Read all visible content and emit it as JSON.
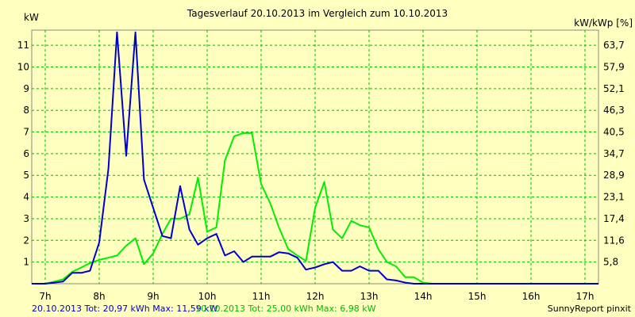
{
  "chart_data": {
    "type": "line",
    "title": "Tagesverlauf 20.10.2013 im Vergleich zum 10.10.2013",
    "ylabel_left": "kW",
    "ylabel_right": "kW/kWp [%]",
    "x_ticks": [
      "7h",
      "8h",
      "9h",
      "10h",
      "11h",
      "12h",
      "13h",
      "14h",
      "15h",
      "16h",
      "17h"
    ],
    "y_ticks_left": [
      "1",
      "2",
      "3",
      "4",
      "5",
      "6",
      "7",
      "8",
      "9",
      "10",
      "11"
    ],
    "y_ticks_right": [
      "5,8",
      "11,6",
      "17,4",
      "23,1",
      "28,9",
      "34,7",
      "40,5",
      "46,3",
      "52,1",
      "57,9",
      "63,7"
    ],
    "xlim": [
      6.75,
      17.25
    ],
    "ylim": [
      0,
      11.7
    ],
    "grid": true,
    "grid_color": "#00bb00",
    "series": [
      {
        "name": "20.10.2013",
        "color": "#0000cc",
        "x": [
          6.75,
          7.0,
          7.17,
          7.33,
          7.5,
          7.67,
          7.83,
          8.0,
          8.17,
          8.33,
          8.5,
          8.67,
          8.83,
          9.0,
          9.17,
          9.33,
          9.5,
          9.67,
          9.83,
          10.0,
          10.17,
          10.33,
          10.5,
          10.67,
          10.83,
          11.0,
          11.17,
          11.33,
          11.5,
          11.67,
          11.83,
          12.0,
          12.17,
          12.33,
          12.5,
          12.67,
          12.83,
          13.0,
          13.17,
          13.33,
          13.5,
          13.67,
          13.83,
          14.0,
          14.17,
          14.33,
          14.5,
          14.67,
          14.83,
          15.0,
          15.17,
          15.33,
          15.5,
          15.67,
          15.83,
          16.0,
          16.17,
          16.33,
          16.5,
          16.67,
          16.83,
          17.0,
          17.25
        ],
        "y": [
          0,
          0,
          0.05,
          0.1,
          0.5,
          0.5,
          0.6,
          1.9,
          5.3,
          11.6,
          5.9,
          11.6,
          4.8,
          3.5,
          2.2,
          2.1,
          4.5,
          2.5,
          1.8,
          2.1,
          2.3,
          1.3,
          1.5,
          1.0,
          1.25,
          1.25,
          1.25,
          1.45,
          1.4,
          1.2,
          0.65,
          0.75,
          0.9,
          1.0,
          0.6,
          0.6,
          0.8,
          0.6,
          0.6,
          0.2,
          0.15,
          0.05,
          0,
          0,
          0,
          0,
          0,
          0,
          0,
          0,
          0,
          0,
          0,
          0,
          0,
          0,
          0,
          0,
          0,
          0,
          0,
          0,
          0
        ]
      },
      {
        "name": "10.10.2013",
        "color": "#00ee00",
        "x": [
          6.75,
          7.0,
          7.17,
          7.33,
          7.5,
          7.67,
          7.83,
          8.0,
          8.17,
          8.33,
          8.5,
          8.67,
          8.83,
          9.0,
          9.17,
          9.33,
          9.5,
          9.67,
          9.83,
          10.0,
          10.17,
          10.33,
          10.5,
          10.67,
          10.83,
          11.0,
          11.17,
          11.33,
          11.5,
          11.67,
          11.83,
          12.0,
          12.17,
          12.33,
          12.5,
          12.67,
          12.83,
          13.0,
          13.17,
          13.33,
          13.5,
          13.67,
          13.83,
          14.0,
          14.17,
          14.33,
          14.5,
          14.67,
          14.83,
          15.0,
          15.17,
          15.33,
          15.5,
          15.67,
          15.83,
          16.0,
          16.17,
          16.33,
          16.5,
          16.67,
          16.83,
          17.0,
          17.25
        ],
        "y": [
          0,
          0,
          0.1,
          0.2,
          0.55,
          0.75,
          0.95,
          1.1,
          1.2,
          1.3,
          1.75,
          2.1,
          0.9,
          1.4,
          2.3,
          3.0,
          3.0,
          3.2,
          4.9,
          2.4,
          2.6,
          5.7,
          6.8,
          6.95,
          6.95,
          4.6,
          3.7,
          2.6,
          1.6,
          1.3,
          1.05,
          3.5,
          4.7,
          2.5,
          2.1,
          2.9,
          2.7,
          2.6,
          1.6,
          1.0,
          0.8,
          0.3,
          0.3,
          0.05,
          0,
          0,
          0,
          0,
          0,
          0,
          0,
          0,
          0,
          0,
          0,
          0,
          0,
          0,
          0,
          0,
          0,
          0,
          0
        ]
      }
    ],
    "legend": [
      {
        "text": "20.10.2013 Tot: 20,97 kWh Max: 11,59 kW",
        "color": "#0000cc"
      },
      {
        "text": "10.10.2013 Tot: 25,00 kWh Max: 6,98 kW",
        "color": "#00bb00"
      }
    ],
    "credit": "SunnyReport pinxit"
  }
}
